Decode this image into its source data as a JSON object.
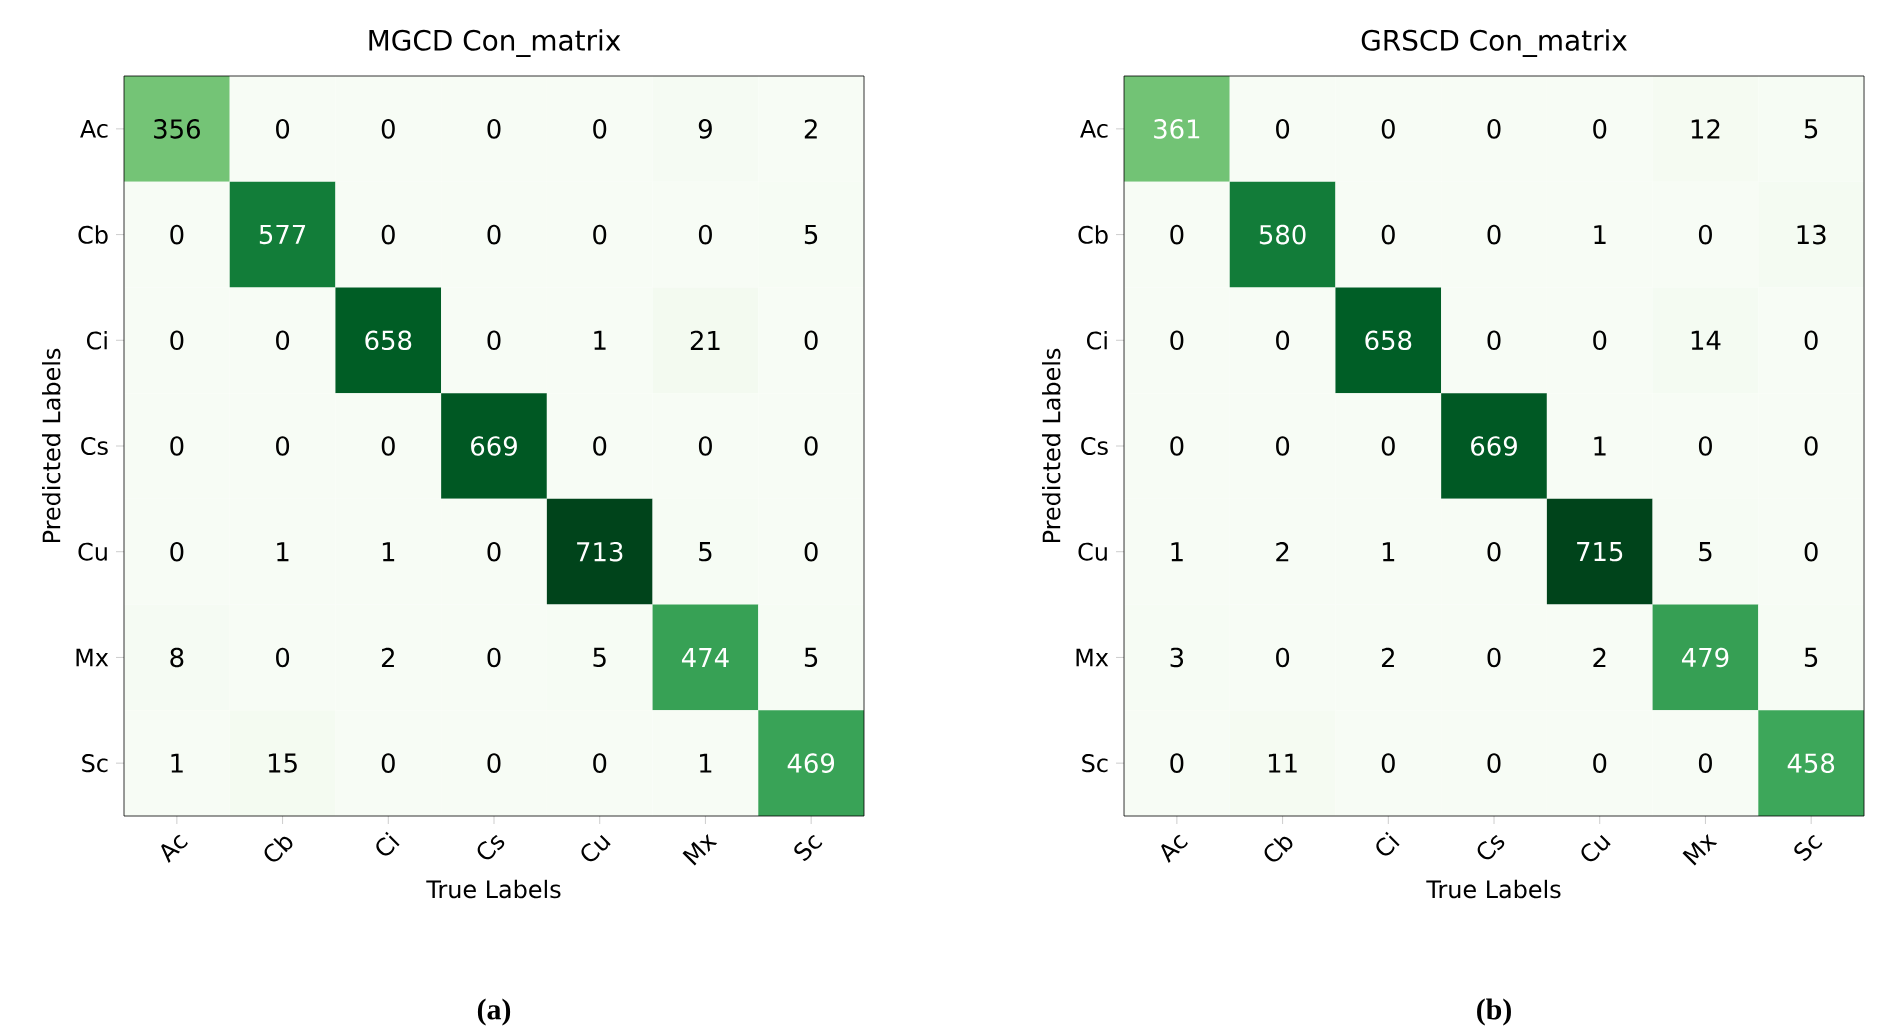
{
  "chart_data": [
    {
      "type": "heatmap",
      "title": "MGCD Con_matrix",
      "xlabel": "True Labels",
      "ylabel": "Predicted Labels",
      "categories": [
        "Ac",
        "Cb",
        "Ci",
        "Cs",
        "Cu",
        "Mx",
        "Sc"
      ],
      "y_categories": [
        "Ac",
        "Cb",
        "Ci",
        "Cs",
        "Cu",
        "Mx",
        "Sc"
      ],
      "cells": [
        [
          356,
          0,
          0,
          0,
          0,
          9,
          2
        ],
        [
          0,
          577,
          0,
          0,
          0,
          0,
          5
        ],
        [
          0,
          0,
          658,
          0,
          1,
          21,
          0
        ],
        [
          0,
          0,
          0,
          669,
          0,
          0,
          0
        ],
        [
          0,
          1,
          1,
          0,
          713,
          5,
          0
        ],
        [
          8,
          0,
          2,
          0,
          5,
          474,
          5
        ],
        [
          1,
          15,
          0,
          0,
          0,
          1,
          469
        ]
      ],
      "data_labels": true,
      "annotations": [
        "(a)"
      ]
    },
    {
      "type": "heatmap",
      "title": "GRSCD Con_matrix",
      "xlabel": "True Labels",
      "ylabel": "Predicted Labels",
      "categories": [
        "Ac",
        "Cb",
        "Ci",
        "Cs",
        "Cu",
        "Mx",
        "Sc"
      ],
      "y_categories": [
        "Ac",
        "Cb",
        "Ci",
        "Cs",
        "Cu",
        "Mx",
        "Sc"
      ],
      "cells": [
        [
          361,
          0,
          0,
          0,
          0,
          12,
          5
        ],
        [
          0,
          580,
          0,
          0,
          1,
          0,
          13
        ],
        [
          0,
          0,
          658,
          0,
          0,
          14,
          0
        ],
        [
          0,
          0,
          0,
          669,
          1,
          0,
          0
        ],
        [
          1,
          2,
          1,
          0,
          715,
          5,
          0
        ],
        [
          3,
          0,
          2,
          0,
          2,
          479,
          5
        ],
        [
          0,
          11,
          0,
          0,
          0,
          0,
          458
        ]
      ],
      "data_labels": true,
      "annotations": [
        "(b)"
      ]
    }
  ]
}
